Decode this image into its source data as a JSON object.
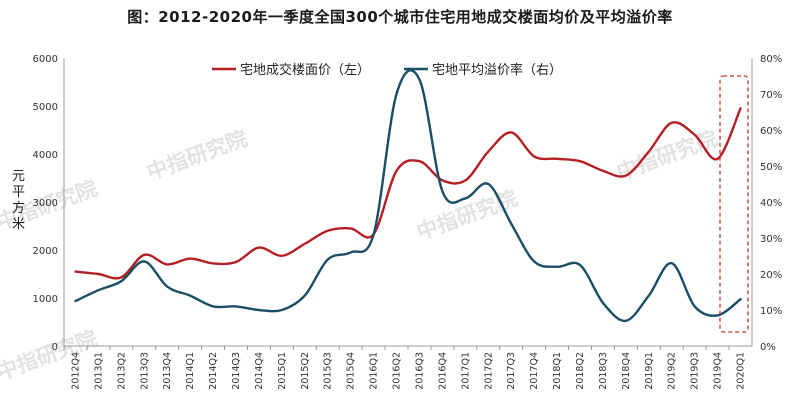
{
  "chart_data": {
    "type": "line",
    "title": "图：2012-2020年一季度全国300个城市住宅用地成交楼面均价及平均溢价率",
    "ylabel": "元/平方米",
    "ylabel_chars": [
      "元",
      "平",
      "方",
      "米"
    ],
    "ylim": [
      0,
      6000
    ],
    "y2lim": [
      0,
      0.8
    ],
    "y_ticks": [
      "0",
      "1000",
      "2000",
      "3000",
      "4000",
      "5000",
      "6000"
    ],
    "y2_ticks": [
      "0%",
      "10%",
      "20%",
      "30%",
      "40%",
      "50%",
      "60%",
      "70%",
      "80%"
    ],
    "categories": [
      "2012Q4",
      "2013Q1",
      "2013Q2",
      "2013Q3",
      "2013Q4",
      "2014Q1",
      "2014Q2",
      "2014Q3",
      "2014Q4",
      "2015Q1",
      "2015Q2",
      "2015Q3",
      "2015Q4",
      "2016Q1",
      "2016Q2",
      "2016Q3",
      "2016Q4",
      "2017Q1",
      "2017Q2",
      "2017Q3",
      "2017Q4",
      "2018Q1",
      "2018Q2",
      "2018Q3",
      "2018Q4",
      "2019Q1",
      "2019Q2",
      "2019Q3",
      "2019Q4",
      "2020Q1"
    ],
    "series": [
      {
        "name": "宅地成交楼面价（左）",
        "axis": "left",
        "color": "#b51f24",
        "values": [
          1550,
          1500,
          1430,
          1900,
          1700,
          1820,
          1720,
          1750,
          2050,
          1880,
          2130,
          2400,
          2450,
          2330,
          3650,
          3850,
          3450,
          3450,
          4050,
          4450,
          3950,
          3900,
          3850,
          3650,
          3550,
          4050,
          4650,
          4400,
          3900,
          4950
        ]
      },
      {
        "name": "宅地平均溢价率（右）",
        "axis": "right",
        "color": "#1a4e66",
        "values": [
          0.125,
          0.155,
          0.18,
          0.235,
          0.165,
          0.14,
          0.11,
          0.11,
          0.1,
          0.1,
          0.14,
          0.24,
          0.26,
          0.31,
          0.7,
          0.74,
          0.43,
          0.41,
          0.45,
          0.34,
          0.235,
          0.22,
          0.225,
          0.12,
          0.07,
          0.14,
          0.23,
          0.11,
          0.085,
          0.13
        ]
      }
    ],
    "legend": "top-center",
    "grid": false,
    "annotations": [
      "dashed-red-box-around-2020Q1"
    ]
  },
  "watermarks": [
    "中指研究院",
    "中指研究院",
    "中指研究院",
    "中指研究院",
    "中指研究院"
  ],
  "colors": {
    "price_line": "#b51f24",
    "premium_line": "#1a4e66",
    "highlight_box": "#c0392b"
  }
}
